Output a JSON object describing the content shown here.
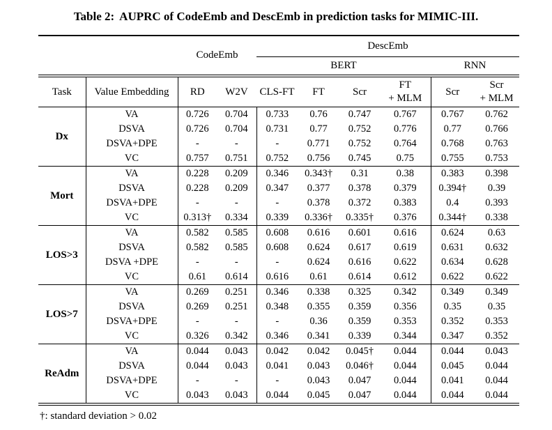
{
  "caption": {
    "label": "Table 2:",
    "text": "AUPRC of CodeEmb and DescEmb in prediction tasks for MIMIC-III."
  },
  "table": {
    "group_headers": {
      "codeemb": "CodeEmb",
      "descemb": "DescEmb",
      "bert": "BERT",
      "rnn": "RNN"
    },
    "column_headers": [
      "Task",
      "Value Embedding",
      "RD",
      "W2V",
      "CLS-FT",
      "FT",
      "Scr",
      "FT\n+ MLM",
      "Scr",
      "Scr\n+ MLM"
    ],
    "groups": [
      {
        "task": "Dx",
        "rows": [
          {
            "label": "VA",
            "values": [
              "0.726",
              "0.704",
              "0.733",
              "0.76",
              "0.747",
              "0.767",
              "0.767",
              "0.762"
            ]
          },
          {
            "label": "DSVA",
            "values": [
              "0.726",
              "0.704",
              "0.731",
              "0.77",
              "0.752",
              "0.776",
              "0.77",
              "0.766"
            ]
          },
          {
            "label": "DSVA+DPE",
            "values": [
              "-",
              "-",
              "-",
              "0.771",
              "0.752",
              "0.764",
              "0.768",
              "0.763"
            ]
          },
          {
            "label": "VC",
            "values": [
              "0.757",
              "0.751",
              "0.752",
              "0.756",
              "0.745",
              "0.75",
              "0.755",
              "0.753"
            ]
          }
        ]
      },
      {
        "task": "Mort",
        "rows": [
          {
            "label": "VA",
            "values": [
              "0.228",
              "0.209",
              "0.346",
              "0.343†",
              "0.31",
              "0.38",
              "0.383",
              "0.398"
            ]
          },
          {
            "label": "DSVA",
            "values": [
              "0.228",
              "0.209",
              "0.347",
              "0.377",
              "0.378",
              "0.379",
              "0.394†",
              "0.39"
            ]
          },
          {
            "label": "DSVA+DPE",
            "values": [
              "-",
              "-",
              "-",
              "0.378",
              "0.372",
              "0.383",
              "0.4",
              "0.393"
            ]
          },
          {
            "label": "VC",
            "values": [
              "0.313†",
              "0.334",
              "0.339",
              "0.336†",
              "0.335†",
              "0.376",
              "0.344†",
              "0.338"
            ]
          }
        ]
      },
      {
        "task": "LOS>3",
        "rows": [
          {
            "label": "VA",
            "values": [
              "0.582",
              "0.585",
              "0.608",
              "0.616",
              "0.601",
              "0.616",
              "0.624",
              "0.63"
            ]
          },
          {
            "label": "DSVA",
            "values": [
              "0.582",
              "0.585",
              "0.608",
              "0.624",
              "0.617",
              "0.619",
              "0.631",
              "0.632"
            ]
          },
          {
            "label": "DSVA +DPE",
            "values": [
              "-",
              "-",
              "-",
              "0.624",
              "0.616",
              "0.622",
              "0.634",
              "0.628"
            ]
          },
          {
            "label": "VC",
            "values": [
              "0.61",
              "0.614",
              "0.616",
              "0.61",
              "0.614",
              "0.612",
              "0.622",
              "0.622"
            ]
          }
        ]
      },
      {
        "task": "LOS>7",
        "rows": [
          {
            "label": "VA",
            "values": [
              "0.269",
              "0.251",
              "0.346",
              "0.338",
              "0.325",
              "0.342",
              "0.349",
              "0.349"
            ]
          },
          {
            "label": "DSVA",
            "values": [
              "0.269",
              "0.251",
              "0.348",
              "0.355",
              "0.359",
              "0.356",
              "0.35",
              "0.35"
            ]
          },
          {
            "label": "DSVA+DPE",
            "values": [
              "-",
              "-",
              "-",
              "0.36",
              "0.359",
              "0.353",
              "0.352",
              "0.353"
            ]
          },
          {
            "label": "VC",
            "values": [
              "0.326",
              "0.342",
              "0.346",
              "0.341",
              "0.339",
              "0.344",
              "0.347",
              "0.352"
            ]
          }
        ]
      },
      {
        "task": "ReAdm",
        "rows": [
          {
            "label": "VA",
            "values": [
              "0.044",
              "0.043",
              "0.042",
              "0.042",
              "0.045†",
              "0.044",
              "0.044",
              "0.043"
            ]
          },
          {
            "label": "DSVA",
            "values": [
              "0.044",
              "0.043",
              "0.041",
              "0.043",
              "0.046†",
              "0.044",
              "0.045",
              "0.044"
            ]
          },
          {
            "label": "DSVA+DPE",
            "values": [
              "-",
              "-",
              "-",
              "0.043",
              "0.047",
              "0.044",
              "0.041",
              "0.044"
            ]
          },
          {
            "label": "VC",
            "values": [
              "0.043",
              "0.043",
              "0.044",
              "0.045",
              "0.047",
              "0.044",
              "0.044",
              "0.044"
            ]
          }
        ]
      }
    ]
  },
  "footnote": "†: standard deviation > 0.02"
}
